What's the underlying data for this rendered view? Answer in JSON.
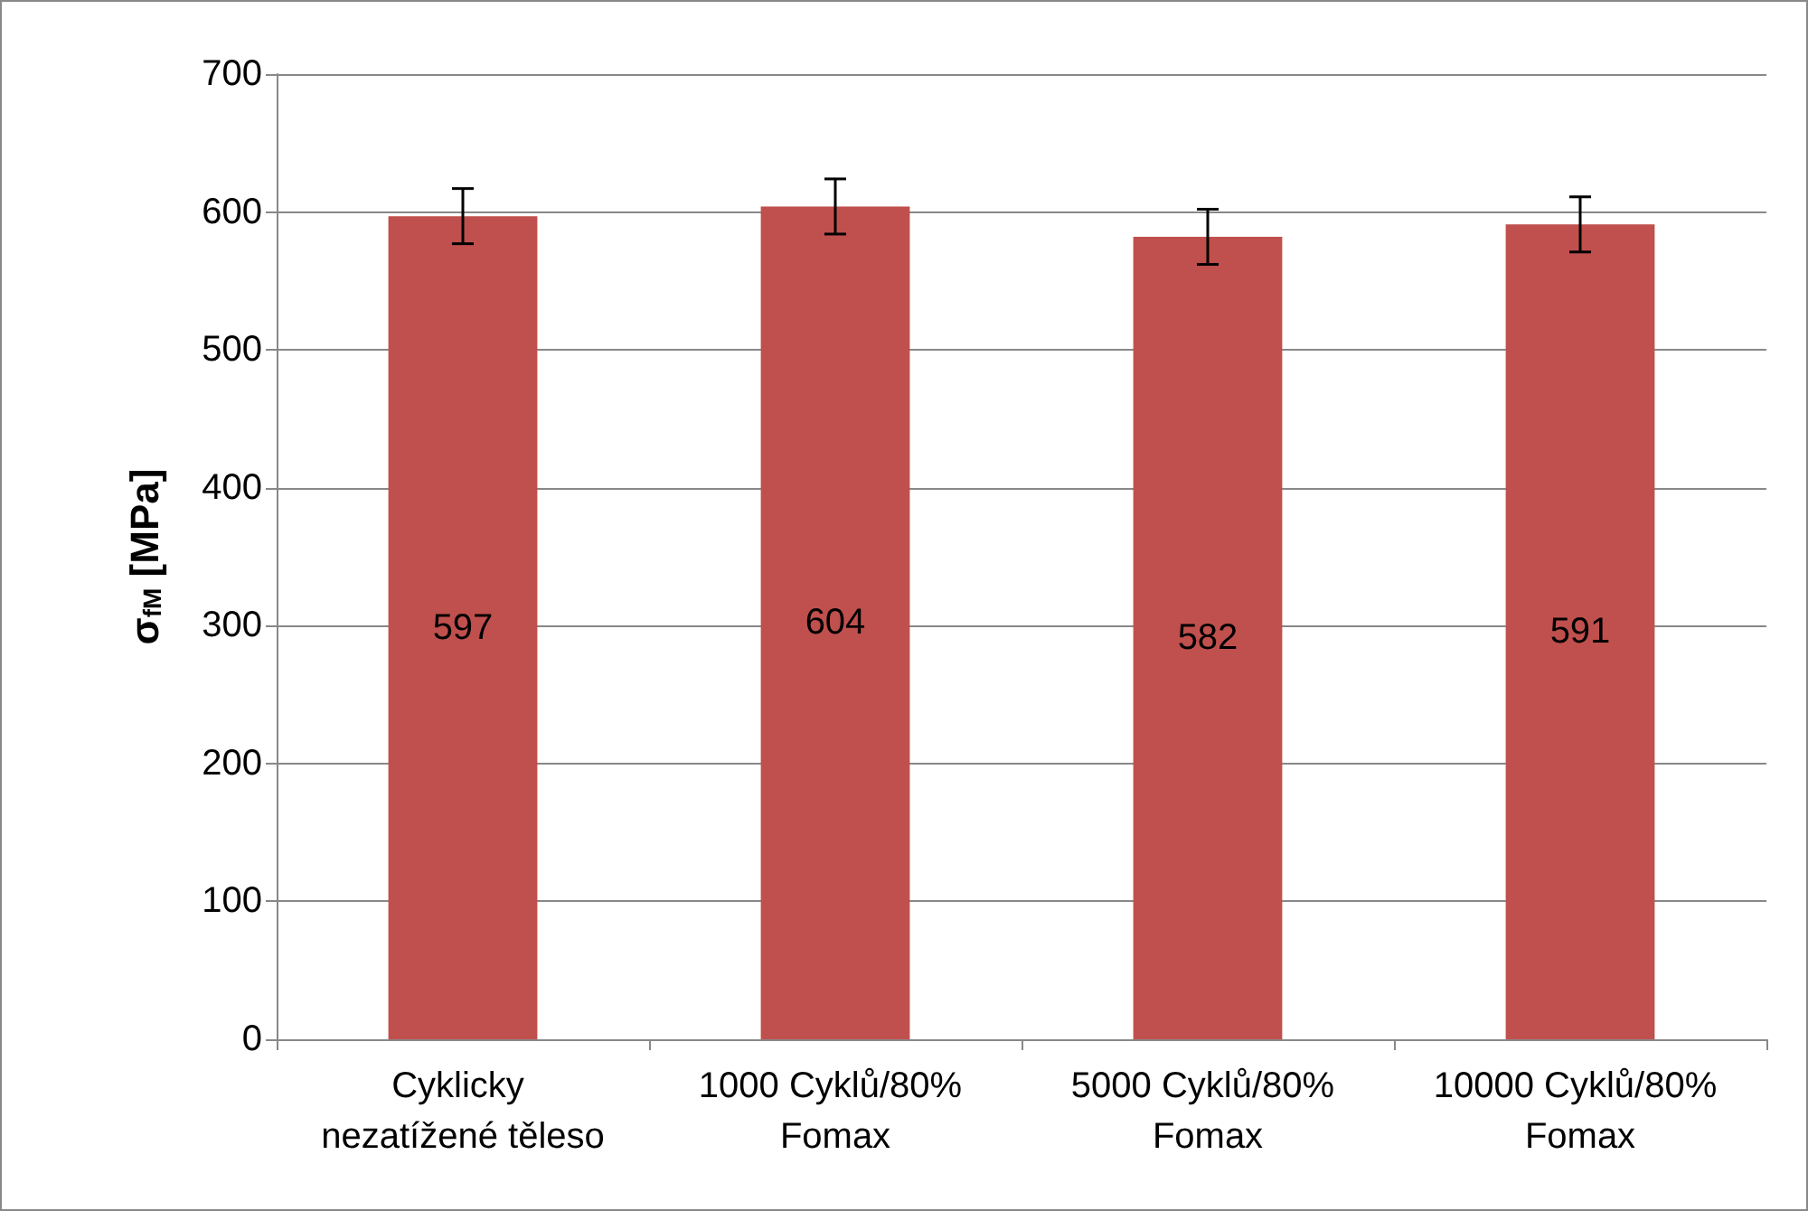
{
  "chart_data": {
    "type": "bar",
    "ylabel": "σ$_{fM}$ [MPa]",
    "categories": [
      "Cyklicky nezatížené těleso",
      "1000 Cyklů/80% Fomax",
      "5000 Cyklů/80% Fomax",
      "10000 Cyklů/80% Fomax"
    ],
    "values": [
      597,
      604,
      582,
      591
    ],
    "color": "#c0504d",
    "errors": [
      20,
      20,
      20,
      20
    ],
    "ylim": [
      0,
      700
    ],
    "yticks": [
      0,
      100,
      200,
      300,
      400,
      500,
      600,
      700
    ],
    "grid": "y",
    "data_labels": true
  }
}
